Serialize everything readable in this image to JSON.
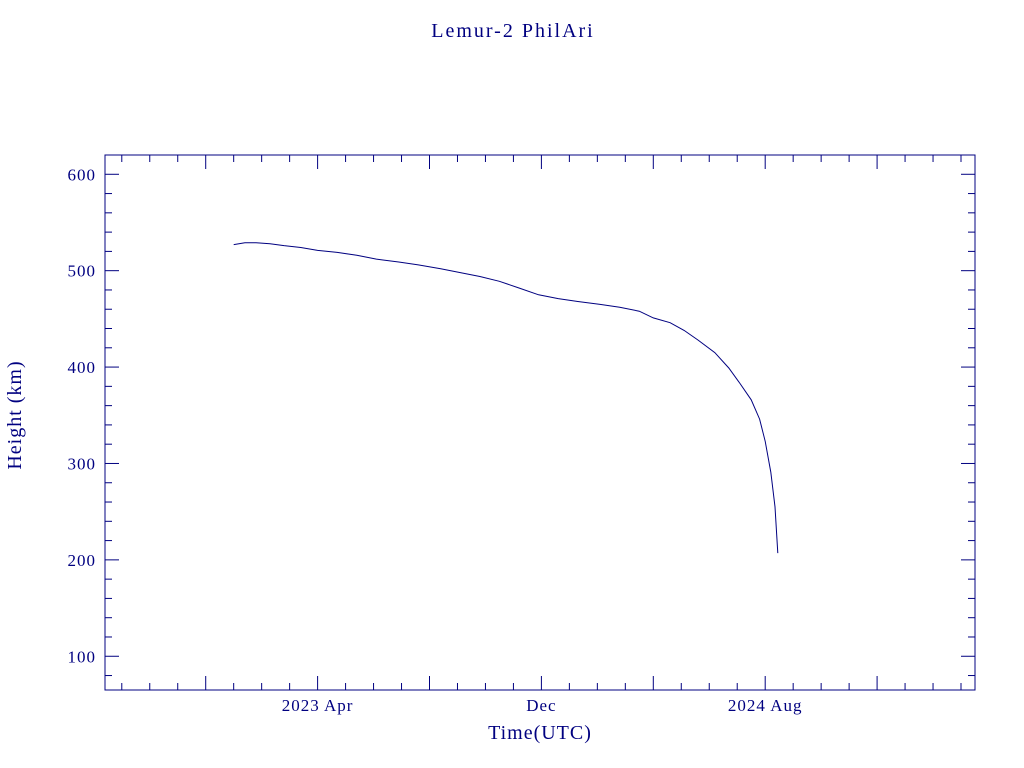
{
  "page": {
    "background": "#ffffff"
  },
  "chart_data": {
    "type": "line",
    "title": "Lemur-2 PhilAri",
    "xlabel": "Time(UTC)",
    "ylabel": "Height (km)",
    "axis_color": "#000080",
    "line_color": "#000080",
    "x_unit": "months relative to 2023-04-01",
    "xlim": [
      -7.6,
      23.5
    ],
    "ylim": [
      65,
      620
    ],
    "x_minor_step": 1,
    "x_major_step": 4,
    "x_tick_labels": [
      {
        "pos": 0,
        "label": "2023 Apr"
      },
      {
        "pos": 8,
        "label": "Dec"
      },
      {
        "pos": 16,
        "label": "2024 Aug"
      }
    ],
    "y_minor_step": 20,
    "y_major_step": 100,
    "y_tick_labels": [
      100,
      200,
      300,
      400,
      500,
      600
    ],
    "grid": false,
    "legend": null,
    "points": [
      [
        -3.0,
        527
      ],
      [
        -2.6,
        529
      ],
      [
        -2.2,
        529
      ],
      [
        -1.7,
        528
      ],
      [
        -1.2,
        526
      ],
      [
        -0.6,
        524
      ],
      [
        0.0,
        521
      ],
      [
        0.7,
        519
      ],
      [
        1.4,
        516
      ],
      [
        2.1,
        512
      ],
      [
        2.9,
        509
      ],
      [
        3.6,
        506
      ],
      [
        4.4,
        502
      ],
      [
        5.1,
        498
      ],
      [
        5.8,
        494
      ],
      [
        6.5,
        489
      ],
      [
        7.2,
        482
      ],
      [
        7.9,
        475
      ],
      [
        8.6,
        471
      ],
      [
        9.3,
        468
      ],
      [
        10.1,
        465
      ],
      [
        10.8,
        462
      ],
      [
        11.5,
        458
      ],
      [
        12.0,
        451
      ],
      [
        12.6,
        446
      ],
      [
        13.1,
        438
      ],
      [
        13.6,
        428
      ],
      [
        14.2,
        415
      ],
      [
        14.7,
        399
      ],
      [
        15.1,
        383
      ],
      [
        15.5,
        366
      ],
      [
        15.8,
        346
      ],
      [
        16.0,
        323
      ],
      [
        16.2,
        291
      ],
      [
        16.35,
        255
      ],
      [
        16.45,
        207
      ]
    ]
  }
}
